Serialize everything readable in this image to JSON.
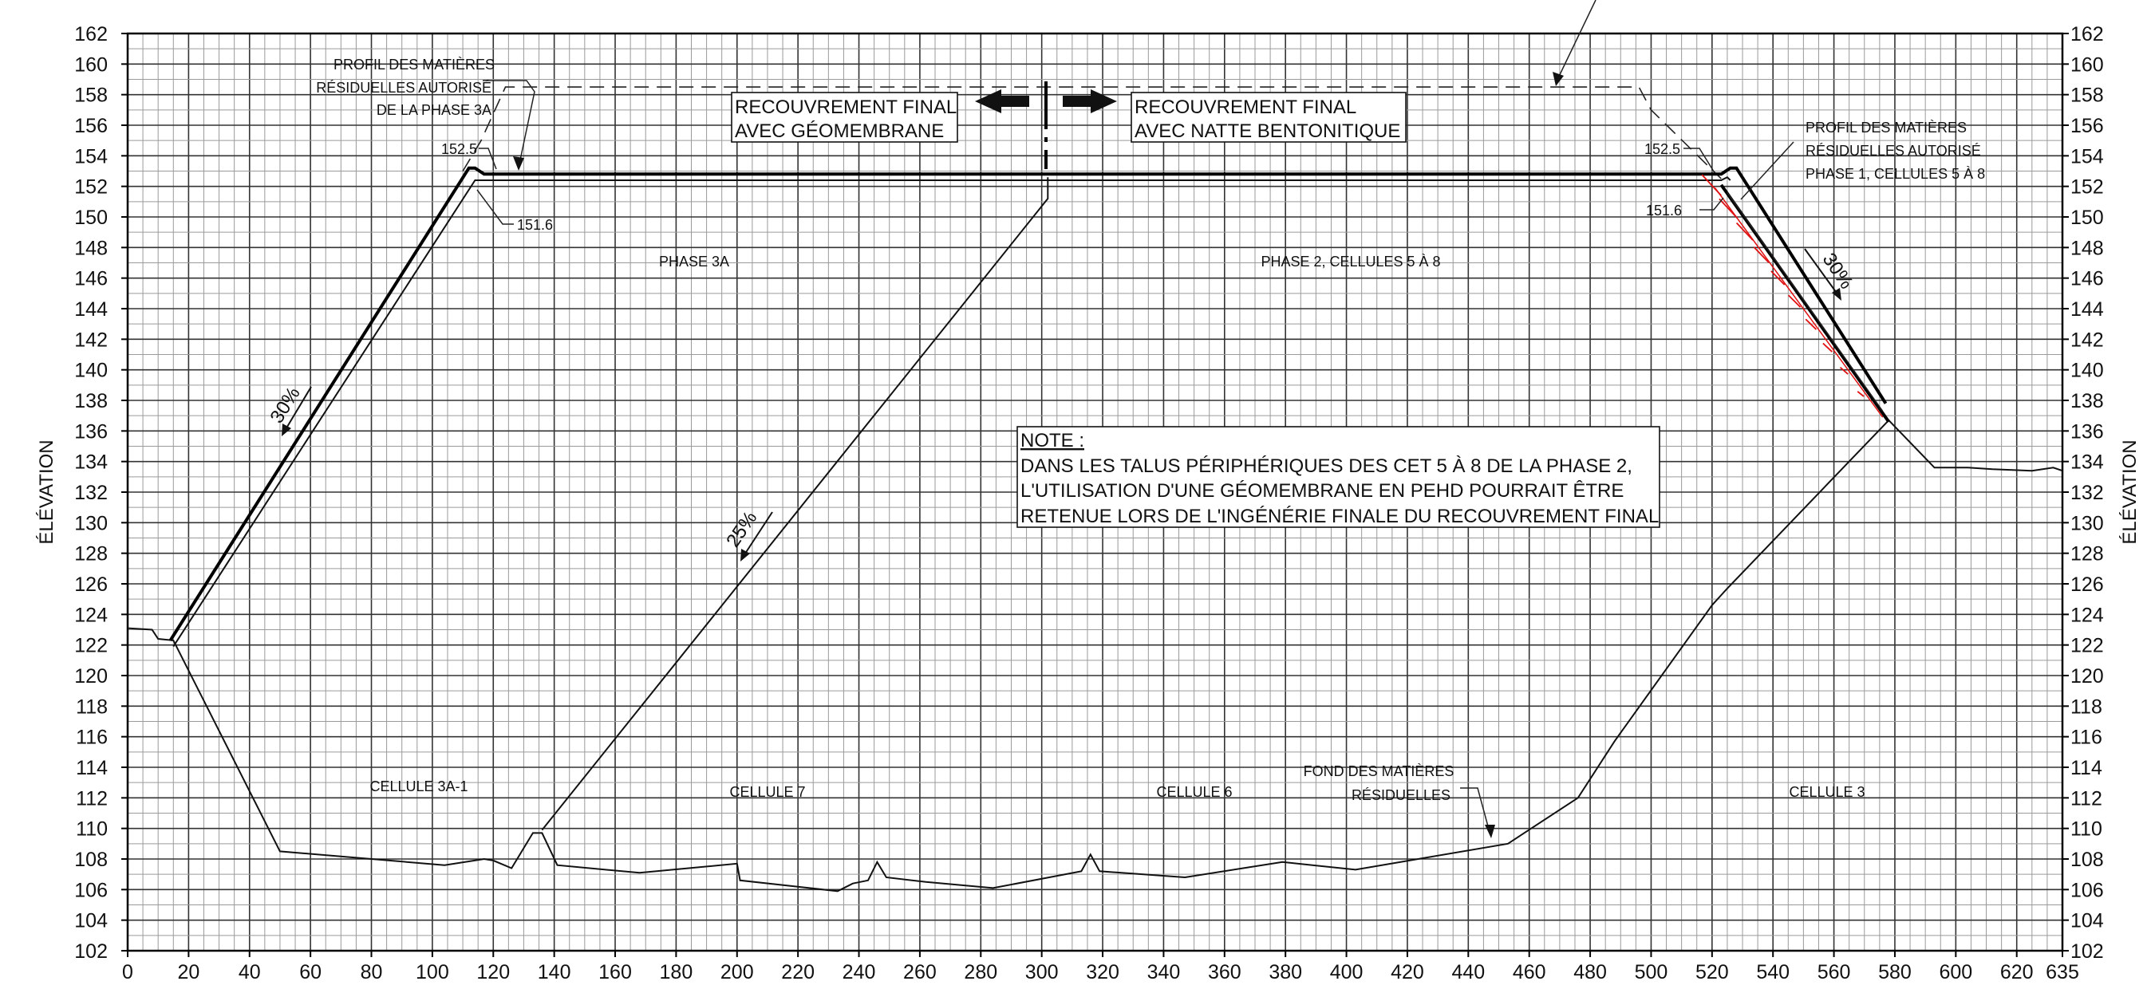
{
  "axes": {
    "y_label": "ÉLÉVATION",
    "y_ticks": [
      102,
      104,
      106,
      108,
      110,
      112,
      114,
      116,
      118,
      120,
      122,
      124,
      126,
      128,
      130,
      132,
      134,
      136,
      138,
      140,
      142,
      144,
      146,
      148,
      150,
      152,
      154,
      156,
      158,
      160,
      162
    ],
    "x_ticks": [
      0,
      20,
      40,
      60,
      80,
      100,
      120,
      140,
      160,
      180,
      200,
      220,
      240,
      260,
      280,
      300,
      320,
      340,
      360,
      380,
      400,
      420,
      440,
      460,
      480,
      500,
      520,
      540,
      560,
      580,
      600,
      620,
      635
    ],
    "x_range": [
      0,
      635
    ],
    "y_range": [
      102,
      162
    ],
    "grid": "on"
  },
  "labels": {
    "profil_left": [
      "PROFIL DES MATIÈRES",
      "RÉSIDUELLES AUTORISÉ",
      "DE LA PHASE 3A"
    ],
    "profil_right": [
      "PROFIL DES MATIÈRES",
      "RÉSIDUELLES AUTORISÉ",
      "PHASE 1, CELLULES 5 À 8"
    ],
    "cover_left": [
      "RECOUVREMENT FINAL",
      "AVEC GÉOMEMBRANE"
    ],
    "cover_right": [
      "RECOUVREMENT FINAL",
      "AVEC NATTE BENTONITIQUE"
    ],
    "elev_1525_left": "152.5",
    "elev_1516_left": "151.6",
    "elev_1525_right": "152.5",
    "elev_1516_right": "151.6",
    "phase_3a": "PHASE 3A",
    "phase_2": "PHASE 2,  CELLULES 5 À 8",
    "slope_left": "30%",
    "slope_mid": "25%",
    "slope_right": "30%",
    "note_title": "NOTE :",
    "note_lines": [
      "DANS LES TALUS PÉRIPHÉRIQUES DES CET 5 À 8 DE LA PHASE 2,",
      "L'UTILISATION D'UNE GÉOMEMBRANE EN PEHD POURRAIT ÊTRE",
      "RETENUE LORS DE L'INGÉNÉRIE FINALE DU RECOUVREMENT FINAL"
    ],
    "cellule_3a1": "CELLULE 3A-1",
    "cellule_7": "CELLULE 7",
    "cellule_6": "CELLULE 6",
    "cellule_3": "CELLULE 3",
    "fond": [
      "FOND DES MATIÈRES",
      "RÉSIDUELLES"
    ]
  },
  "colors": {
    "hatch": "#e01010",
    "line": "#111111",
    "grid": "#9a9a9a"
  },
  "profiles": {
    "ground": [
      [
        0,
        123.1
      ],
      [
        8,
        123
      ],
      [
        10,
        122.4
      ],
      [
        15,
        122.3
      ],
      [
        50,
        108.5
      ],
      [
        104,
        107.6
      ],
      [
        117,
        108
      ],
      [
        120,
        107.9
      ],
      [
        126,
        107.4
      ],
      [
        133,
        109.7
      ],
      [
        136,
        109.7
      ],
      [
        141,
        107.6
      ],
      [
        168,
        107.1
      ],
      [
        200,
        107.7
      ],
      [
        201,
        106.6
      ],
      [
        233,
        105.9
      ],
      [
        238,
        106.4
      ],
      [
        243,
        106.6
      ],
      [
        246,
        107.8
      ],
      [
        249,
        106.8
      ],
      [
        262,
        106.5
      ],
      [
        284,
        106.1
      ],
      [
        313,
        107.2
      ],
      [
        316,
        108.3
      ],
      [
        319,
        107.2
      ],
      [
        347,
        106.8
      ],
      [
        379,
        107.8
      ],
      [
        403,
        107.3
      ],
      [
        453,
        109
      ],
      [
        476,
        112
      ],
      [
        488,
        115.7
      ],
      [
        520,
        124.6
      ],
      [
        525,
        125.7
      ],
      [
        578,
        136.7
      ],
      [
        593,
        133.6
      ],
      [
        604,
        133.6
      ],
      [
        612,
        133.5
      ],
      [
        625,
        133.4
      ],
      [
        632,
        133.6
      ],
      [
        635,
        133.4
      ]
    ],
    "separation": [
      [
        136,
        109.9
      ],
      [
        302,
        151.2
      ],
      [
        302,
        152.6
      ]
    ],
    "cover_left_outer": [
      [
        14,
        122.3
      ],
      [
        112,
        153.2
      ],
      [
        114,
        153.2
      ],
      [
        117,
        152.8
      ],
      [
        523,
        152.8
      ],
      [
        526,
        153.2
      ],
      [
        528,
        153.2
      ],
      [
        577,
        137.8
      ]
    ],
    "cover_left_inner": [
      [
        15,
        121.9
      ],
      [
        114,
        152.4
      ],
      [
        117,
        152.4
      ],
      [
        523,
        152.4
      ],
      [
        525,
        152.6
      ],
      [
        526,
        152.4
      ]
    ],
    "waste_limit_right": [
      [
        523,
        152.1
      ],
      [
        578,
        136.6
      ]
    ],
    "fill_limit_right": [
      [
        525,
        151.6
      ],
      [
        576,
        137.3
      ]
    ],
    "authorized_profile": [
      [
        110,
        153
      ],
      [
        116,
        155
      ],
      [
        124,
        158.5
      ],
      [
        496,
        158.5
      ],
      [
        500,
        157
      ],
      [
        523,
        152.5
      ]
    ]
  }
}
